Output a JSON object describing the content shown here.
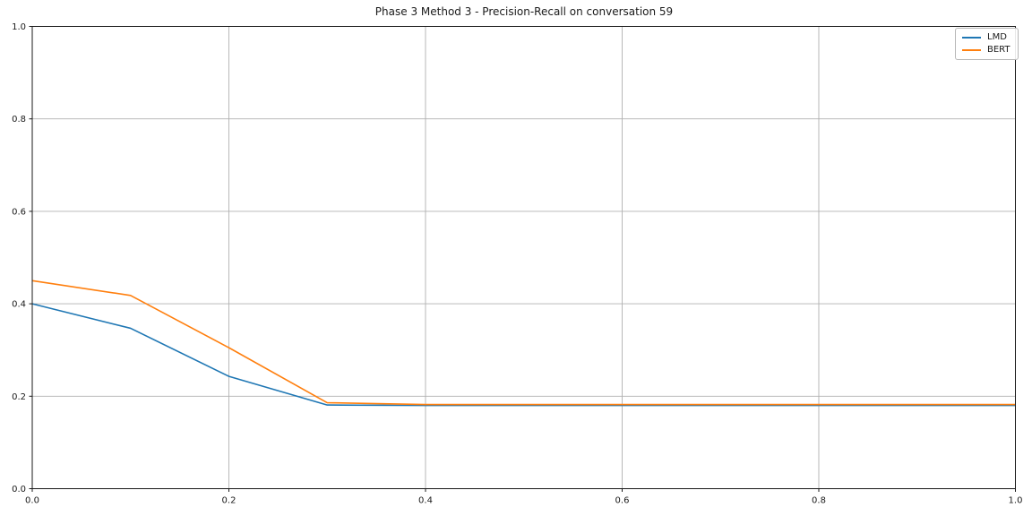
{
  "figure": {
    "background": "#ffffff"
  },
  "chart_data": {
    "type": "line",
    "title": "Phase 3 Method 3 - Precision-Recall on conversation 59",
    "xlabel": "",
    "ylabel": "",
    "xlim": [
      0.0,
      1.0
    ],
    "ylim": [
      0.0,
      1.0
    ],
    "xticks": [
      0.0,
      0.2,
      0.4,
      0.6,
      0.8,
      1.0
    ],
    "yticks": [
      0.0,
      0.2,
      0.4,
      0.6,
      0.8,
      1.0
    ],
    "grid": true,
    "grid_color": "#b0b0b0",
    "spine_color": "#1a1a1a",
    "tick_color": "#1a1a1a",
    "tick_label_color": "#1a1a1a",
    "legend_position": "upper-right",
    "x": [
      0.0,
      0.1,
      0.2,
      0.3,
      0.4,
      0.5,
      0.6,
      0.7,
      0.8,
      0.9,
      1.0
    ],
    "series": [
      {
        "name": "LMD",
        "color": "#1f77b4",
        "values": [
          0.4,
          0.347,
          0.243,
          0.181,
          0.18,
          0.18,
          0.18,
          0.18,
          0.18,
          0.18,
          0.18
        ]
      },
      {
        "name": "BERT",
        "color": "#ff7f0e",
        "values": [
          0.45,
          0.418,
          0.305,
          0.186,
          0.182,
          0.182,
          0.182,
          0.182,
          0.182,
          0.182,
          0.182
        ]
      }
    ]
  }
}
